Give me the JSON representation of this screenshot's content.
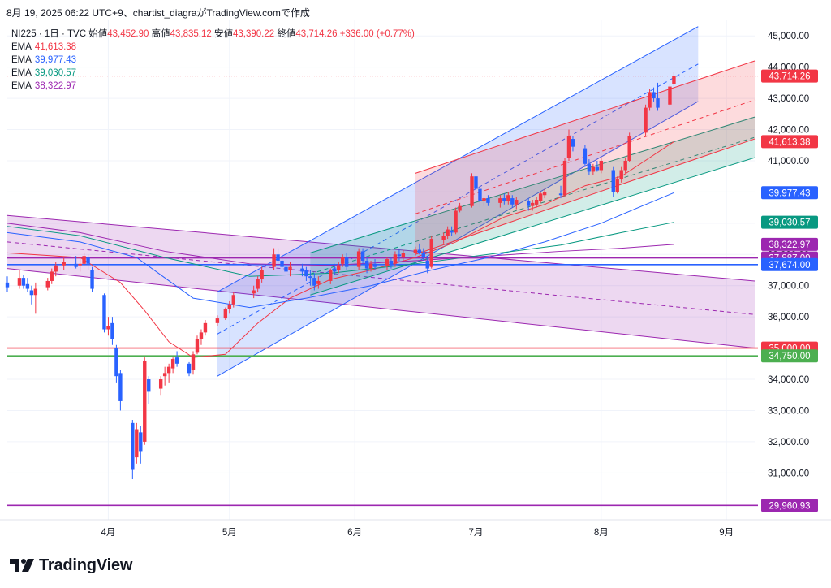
{
  "header": {
    "stamp": "8月 19, 2025 06:22 UTC+9、chartist_diagraがTradingView.comで作成"
  },
  "ohlc": {
    "symbol": "NI225 · 1日 · TVC",
    "open_label": "始値",
    "open": "43,452.90",
    "high_label": "高値",
    "high": "43,835.12",
    "low_label": "安値",
    "low": "43,390.22",
    "close_label": "終値",
    "close": "43,714.26",
    "change": "+336.00 (+0.77%)"
  },
  "ema_legend": [
    {
      "label": "EMA",
      "value": "41,613.38",
      "color": "#f23645"
    },
    {
      "label": "EMA",
      "value": "39,977.43",
      "color": "#2962ff"
    },
    {
      "label": "EMA",
      "value": "39,030.57",
      "color": "#089981"
    },
    {
      "label": "EMA",
      "value": "38,322.97",
      "color": "#9c27b0"
    }
  ],
  "brand": {
    "name": "TradingView"
  },
  "colors": {
    "up": "#f23645",
    "down": "#2962ff"
  },
  "chart_data": {
    "type": "candlestick",
    "ylim": [
      29500,
      45500
    ],
    "y_ticks": [
      31000,
      32000,
      33000,
      34000,
      35000,
      36000,
      37000,
      38000,
      39000,
      40000,
      41000,
      42000,
      43000,
      44000,
      45000
    ],
    "y_tick_labels": [
      "31,000.00",
      "32,000.00",
      "33,000.00",
      "34,000.00",
      "35,000.00",
      "36,000.00",
      "37,000.00",
      "38,000.00",
      "39,000.00",
      "40,000.00",
      "41,000.00",
      "42,000.00",
      "43,000.00",
      "44,000.00",
      "45,000.00"
    ],
    "x_axis": {
      "start": "2025-03-07",
      "end": "2025-09-08",
      "ticks": [
        {
          "date": "2025-04-01",
          "label": "4月"
        },
        {
          "date": "2025-05-01",
          "label": "5月"
        },
        {
          "date": "2025-06-01",
          "label": "6月"
        },
        {
          "date": "2025-07-01",
          "label": "7月"
        },
        {
          "date": "2025-08-01",
          "label": "8月"
        },
        {
          "date": "2025-09-01",
          "label": "9月"
        }
      ]
    },
    "price_badges": [
      {
        "value": 43714.26,
        "label": "43,714.26",
        "color": "#f23645"
      },
      {
        "value": 41613.38,
        "label": "41,613.38",
        "color": "#f23645"
      },
      {
        "value": 39977.43,
        "label": "39,977.43",
        "color": "#2962ff"
      },
      {
        "value": 39030.57,
        "label": "39,030.57",
        "color": "#089981"
      },
      {
        "value": 38322.97,
        "label": "38,322.97",
        "color": "#9c27b0"
      },
      {
        "value": 37887.0,
        "label": "37,887.00",
        "color": "#9c27b0"
      },
      {
        "value": 37674.0,
        "label": "37,674.00",
        "color": "#2962ff"
      },
      {
        "value": 35000.0,
        "label": "35,000.00",
        "color": "#f23645"
      },
      {
        "value": 34750.0,
        "label": "34,750.00",
        "color": "#4caf50"
      },
      {
        "value": 29960.93,
        "label": "29,960.93",
        "color": "#9c27b0"
      }
    ],
    "horizontal_lines": [
      {
        "value": 37887,
        "color": "#9c27b0"
      },
      {
        "value": 37674,
        "color": "#2962ff"
      },
      {
        "value": 35000,
        "color": "#f23645"
      },
      {
        "value": 34750,
        "color": "#4caf50"
      },
      {
        "value": 29960.93,
        "color": "#9c27b0"
      }
    ],
    "channels": [
      {
        "name": "purple",
        "color": "#9c27b0",
        "fill": "rgba(156,39,176,0.18)",
        "top_start": [
          "2025-03-07",
          39250
        ],
        "top_end": [
          "2025-09-08",
          37150
        ],
        "bot_start": [
          "2025-03-07",
          37550
        ],
        "bot_end": [
          "2025-09-08",
          35000
        ]
      },
      {
        "name": "blue",
        "color": "#2962ff",
        "fill": "rgba(41,98,255,0.18)",
        "top_start": [
          "2025-04-28",
          36800
        ],
        "top_end": [
          "2025-08-25",
          45300
        ],
        "bot_start": [
          "2025-04-28",
          34100
        ],
        "bot_end": [
          "2025-08-25",
          42900
        ]
      },
      {
        "name": "teal",
        "color": "#089981",
        "fill": "rgba(8,153,129,0.18)",
        "top_start": [
          "2025-05-21",
          38050
        ],
        "top_end": [
          "2025-09-08",
          42400
        ],
        "bot_start": [
          "2025-05-21",
          36700
        ],
        "bot_end": [
          "2025-09-08",
          41100
        ]
      },
      {
        "name": "red",
        "color": "#f23645",
        "fill": "rgba(242,54,69,0.18)",
        "top_start": [
          "2025-06-16",
          40600
        ],
        "top_end": [
          "2025-09-08",
          44200
        ],
        "bot_start": [
          "2025-06-16",
          38000
        ],
        "bot_end": [
          "2025-09-08",
          41700
        ]
      }
    ],
    "ema_lines": [
      {
        "color": "#f23645",
        "points": [
          [
            "2025-03-07",
            38050
          ],
          [
            "2025-03-25",
            37900
          ],
          [
            "2025-04-04",
            37100
          ],
          [
            "2025-04-10",
            36200
          ],
          [
            "2025-04-16",
            35200
          ],
          [
            "2025-04-22",
            34700
          ],
          [
            "2025-04-30",
            34800
          ],
          [
            "2025-05-08",
            35800
          ],
          [
            "2025-05-16",
            36600
          ],
          [
            "2025-05-26",
            37200
          ],
          [
            "2025-06-05",
            37500
          ],
          [
            "2025-06-16",
            37900
          ],
          [
            "2025-06-26",
            38400
          ],
          [
            "2025-07-08",
            39200
          ],
          [
            "2025-07-18",
            39600
          ],
          [
            "2025-07-28",
            40200
          ],
          [
            "2025-08-06",
            40500
          ],
          [
            "2025-08-13",
            41100
          ],
          [
            "2025-08-19",
            41613
          ]
        ]
      },
      {
        "color": "#2962ff",
        "points": [
          [
            "2025-03-07",
            38700
          ],
          [
            "2025-03-25",
            38400
          ],
          [
            "2025-04-08",
            37900
          ],
          [
            "2025-04-22",
            36600
          ],
          [
            "2025-05-06",
            36300
          ],
          [
            "2025-05-20",
            36600
          ],
          [
            "2025-06-05",
            37000
          ],
          [
            "2025-06-20",
            37500
          ],
          [
            "2025-07-04",
            37900
          ],
          [
            "2025-07-18",
            38400
          ],
          [
            "2025-08-01",
            39000
          ],
          [
            "2025-08-12",
            39600
          ],
          [
            "2025-08-19",
            39977
          ]
        ]
      },
      {
        "color": "#089981",
        "points": [
          [
            "2025-03-07",
            38900
          ],
          [
            "2025-03-25",
            38600
          ],
          [
            "2025-04-15",
            37900
          ],
          [
            "2025-05-06",
            37300
          ],
          [
            "2025-05-26",
            37400
          ],
          [
            "2025-06-16",
            37700
          ],
          [
            "2025-07-04",
            38000
          ],
          [
            "2025-07-22",
            38300
          ],
          [
            "2025-08-06",
            38700
          ],
          [
            "2025-08-19",
            39030
          ]
        ]
      },
      {
        "color": "#9c27b0",
        "points": [
          [
            "2025-03-07",
            39000
          ],
          [
            "2025-03-25",
            38700
          ],
          [
            "2025-04-15",
            38100
          ],
          [
            "2025-05-06",
            37700
          ],
          [
            "2025-05-26",
            37650
          ],
          [
            "2025-06-16",
            37800
          ],
          [
            "2025-07-04",
            37950
          ],
          [
            "2025-07-22",
            38100
          ],
          [
            "2025-08-06",
            38200
          ],
          [
            "2025-08-19",
            38323
          ]
        ]
      }
    ],
    "candles": [
      [
        "2025-03-07",
        37100,
        37300,
        36800,
        36950
      ],
      [
        "2025-03-10",
        37000,
        37500,
        36900,
        37250
      ],
      [
        "2025-03-11",
        37250,
        37350,
        36900,
        37000
      ],
      [
        "2025-03-12",
        37050,
        37250,
        36800,
        36900
      ],
      [
        "2025-03-13",
        36850,
        37000,
        36400,
        36700
      ],
      [
        "2025-03-14",
        36700,
        37100,
        36100,
        36900
      ],
      [
        "2025-03-17",
        36950,
        37250,
        36850,
        37150
      ],
      [
        "2025-03-18",
        37150,
        37550,
        37050,
        37450
      ],
      [
        "2025-03-19",
        37450,
        37750,
        37300,
        37650
      ],
      [
        "2025-03-21",
        37650,
        37900,
        37500,
        37750
      ],
      [
        "2025-03-24",
        37700,
        37950,
        37550,
        37600
      ],
      [
        "2025-03-25",
        37650,
        37850,
        37450,
        37700
      ],
      [
        "2025-03-26",
        37700,
        38050,
        37650,
        37950
      ],
      [
        "2025-03-27",
        37900,
        38000,
        37500,
        37700
      ],
      [
        "2025-03-28",
        37500,
        37600,
        36800,
        36900
      ],
      [
        "2025-03-31",
        36700,
        36750,
        35500,
        35600
      ],
      [
        "2025-04-01",
        35600,
        36000,
        35400,
        35700
      ],
      [
        "2025-04-02",
        35800,
        36000,
        35100,
        35300
      ],
      [
        "2025-04-03",
        35000,
        35100,
        33900,
        34100
      ],
      [
        "2025-04-04",
        34200,
        34300,
        33000,
        33300
      ],
      [
        "2025-04-07",
        32600,
        32700,
        30800,
        31100
      ],
      [
        "2025-04-08",
        31500,
        32600,
        31300,
        32400
      ],
      [
        "2025-04-09",
        32300,
        32500,
        31300,
        31700
      ],
      [
        "2025-04-10",
        32000,
        34700,
        31900,
        34600
      ],
      [
        "2025-04-11",
        34000,
        34100,
        33200,
        33600
      ],
      [
        "2025-04-14",
        33700,
        34100,
        33500,
        34000
      ],
      [
        "2025-04-15",
        34100,
        34400,
        33800,
        34200
      ],
      [
        "2025-04-16",
        34200,
        34500,
        33900,
        34400
      ],
      [
        "2025-04-17",
        34350,
        34700,
        34200,
        34650
      ],
      [
        "2025-04-18",
        34700,
        34900,
        34400,
        34500
      ],
      [
        "2025-04-21",
        34500,
        34550,
        34100,
        34200
      ],
      [
        "2025-04-22",
        34300,
        34900,
        34150,
        34800
      ],
      [
        "2025-04-23",
        34850,
        35400,
        34800,
        35300
      ],
      [
        "2025-04-24",
        35300,
        35600,
        35100,
        35500
      ],
      [
        "2025-04-25",
        35500,
        35900,
        35400,
        35800
      ],
      [
        "2025-04-28",
        35800,
        36050,
        35700,
        35950
      ],
      [
        "2025-04-30",
        35950,
        36300,
        35900,
        36250
      ],
      [
        "2025-05-01",
        36250,
        36500,
        36100,
        36400
      ],
      [
        "2025-05-02",
        36400,
        36800,
        36300,
        36700
      ],
      [
        "2025-05-07",
        36750,
        37000,
        36600,
        36850
      ],
      [
        "2025-05-08",
        36900,
        37300,
        36800,
        37200
      ],
      [
        "2025-05-09",
        37200,
        37600,
        37100,
        37500
      ],
      [
        "2025-05-12",
        37600,
        38200,
        37500,
        38000
      ],
      [
        "2025-05-13",
        38000,
        38200,
        37700,
        37800
      ],
      [
        "2025-05-14",
        37800,
        37950,
        37500,
        37600
      ],
      [
        "2025-05-15",
        37600,
        37750,
        37300,
        37450
      ],
      [
        "2025-05-16",
        37500,
        37750,
        37300,
        37600
      ],
      [
        "2025-05-19",
        37550,
        37700,
        37300,
        37450
      ],
      [
        "2025-05-20",
        37500,
        37600,
        37150,
        37300
      ],
      [
        "2025-05-21",
        37300,
        37500,
        37000,
        37250
      ],
      [
        "2025-05-22",
        37250,
        37400,
        36850,
        37000
      ],
      [
        "2025-05-23",
        37050,
        37300,
        36900,
        37150
      ],
      [
        "2025-05-26",
        37150,
        37550,
        37050,
        37500
      ],
      [
        "2025-05-27",
        37550,
        37700,
        37350,
        37450
      ],
      [
        "2025-05-28",
        37500,
        37750,
        37400,
        37650
      ],
      [
        "2025-05-29",
        37700,
        38000,
        37600,
        37900
      ],
      [
        "2025-05-30",
        37900,
        38050,
        37500,
        37600
      ],
      [
        "2025-06-02",
        37600,
        38200,
        37500,
        38100
      ],
      [
        "2025-06-03",
        38100,
        38200,
        37700,
        37800
      ],
      [
        "2025-06-04",
        37800,
        37900,
        37400,
        37550
      ],
      [
        "2025-06-05",
        37550,
        37800,
        37450,
        37700
      ],
      [
        "2025-06-06",
        37700,
        37850,
        37500,
        37600
      ],
      [
        "2025-06-09",
        37650,
        37900,
        37500,
        37850
      ],
      [
        "2025-06-10",
        37800,
        37900,
        37550,
        37650
      ],
      [
        "2025-06-11",
        37700,
        38100,
        37600,
        38000
      ],
      [
        "2025-06-12",
        38000,
        38150,
        37800,
        37950
      ],
      [
        "2025-06-13",
        37900,
        38150,
        37800,
        38050
      ],
      [
        "2025-06-16",
        38050,
        38250,
        37950,
        38150
      ],
      [
        "2025-06-17",
        38150,
        38350,
        38000,
        38050
      ],
      [
        "2025-06-18",
        38050,
        38200,
        37800,
        37900
      ],
      [
        "2025-06-19",
        37800,
        37950,
        37400,
        37550
      ],
      [
        "2025-06-20",
        37600,
        38600,
        37550,
        38500
      ],
      [
        "2025-06-23",
        38450,
        38700,
        38350,
        38600
      ],
      [
        "2025-06-24",
        38600,
        38900,
        38500,
        38800
      ],
      [
        "2025-06-25",
        38750,
        38900,
        38600,
        38700
      ],
      [
        "2025-06-26",
        38700,
        39500,
        38650,
        39400
      ],
      [
        "2025-06-27",
        39400,
        39650,
        39350,
        39550
      ],
      [
        "2025-06-30",
        39550,
        40600,
        39500,
        40500
      ],
      [
        "2025-07-01",
        40500,
        40850,
        40000,
        40100
      ],
      [
        "2025-07-02",
        40100,
        40150,
        39500,
        39700
      ],
      [
        "2025-07-03",
        39700,
        39850,
        39550,
        39800
      ],
      [
        "2025-07-04",
        39800,
        39900,
        39550,
        39650
      ],
      [
        "2025-07-07",
        39650,
        39900,
        39500,
        39800
      ],
      [
        "2025-07-08",
        39800,
        39950,
        39600,
        39700
      ],
      [
        "2025-07-09",
        39700,
        40000,
        39600,
        39900
      ],
      [
        "2025-07-10",
        39800,
        39900,
        39500,
        39600
      ],
      [
        "2025-07-11",
        39600,
        39850,
        39450,
        39750
      ],
      [
        "2025-07-14",
        39700,
        39800,
        39400,
        39550
      ],
      [
        "2025-07-15",
        39550,
        39750,
        39400,
        39650
      ],
      [
        "2025-07-16",
        39600,
        39850,
        39500,
        39750
      ],
      [
        "2025-07-17",
        39700,
        40000,
        39650,
        39950
      ],
      [
        "2025-07-18",
        39900,
        40100,
        39800,
        40000
      ],
      [
        "2025-07-22",
        39950,
        40200,
        39800,
        39900
      ],
      [
        "2025-07-23",
        39900,
        41100,
        39850,
        41000
      ],
      [
        "2025-07-24",
        41100,
        42000,
        41000,
        41800
      ],
      [
        "2025-07-25",
        41700,
        41800,
        41300,
        41450
      ],
      [
        "2025-07-28",
        41400,
        41500,
        40800,
        40900
      ],
      [
        "2025-07-29",
        40900,
        41050,
        40550,
        40650
      ],
      [
        "2025-07-30",
        40650,
        40900,
        40550,
        40800
      ],
      [
        "2025-07-31",
        40800,
        41000,
        40650,
        40700
      ],
      [
        "2025-08-01",
        40700,
        41100,
        40600,
        41000
      ],
      [
        "2025-08-04",
        40700,
        40800,
        39850,
        40000
      ],
      [
        "2025-08-05",
        40000,
        40500,
        39950,
        40400
      ],
      [
        "2025-08-06",
        40400,
        40800,
        40300,
        40700
      ],
      [
        "2025-08-07",
        40700,
        41100,
        40600,
        41000
      ],
      [
        "2025-08-08",
        41000,
        41900,
        40950,
        41800
      ],
      [
        "2025-08-12",
        41900,
        42800,
        41800,
        42700
      ],
      [
        "2025-08-13",
        42700,
        43300,
        42600,
        43200
      ],
      [
        "2025-08-14",
        43200,
        43350,
        42900,
        43000
      ],
      [
        "2025-08-15",
        43000,
        43500,
        42600,
        42700
      ],
      [
        "2025-08-18",
        42800,
        43450,
        42750,
        43378
      ],
      [
        "2025-08-19",
        43453,
        43835,
        43390,
        43714
      ]
    ]
  }
}
